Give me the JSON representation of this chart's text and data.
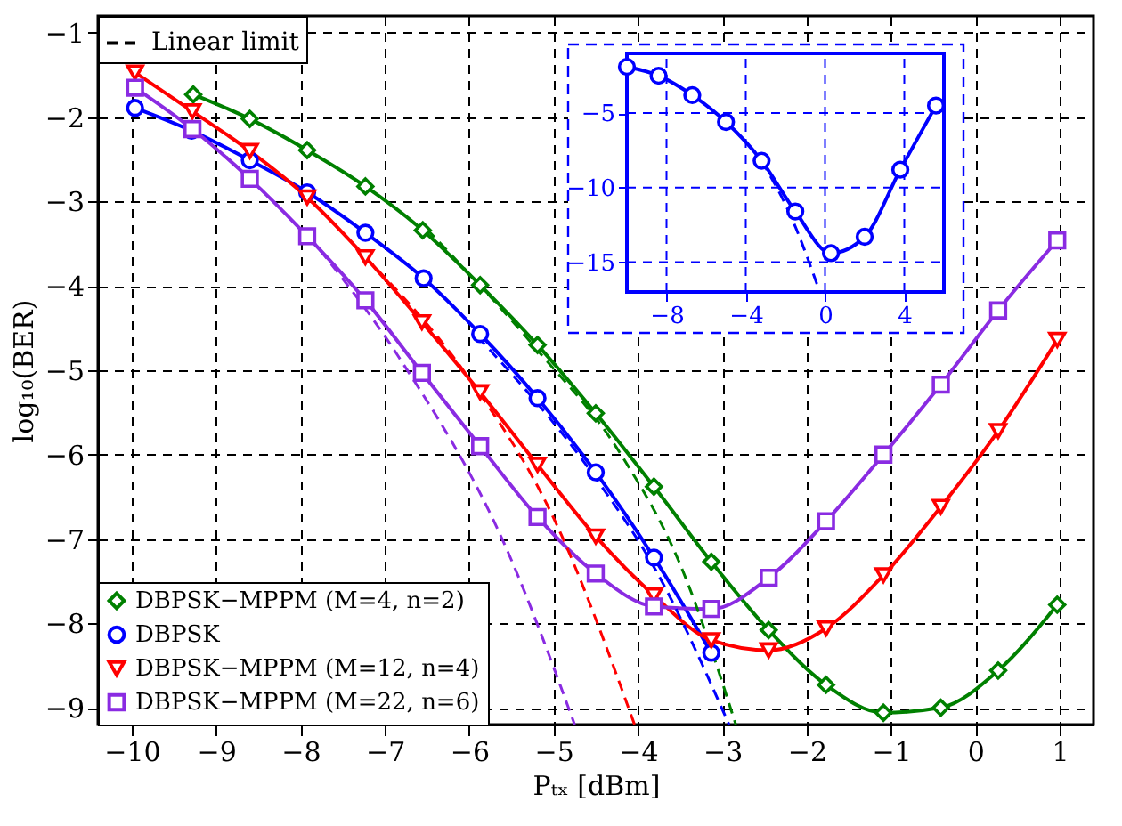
{
  "chart_data": [
    {
      "type": "line",
      "xlabel": "Pₜₓ [dBm]",
      "ylabel": "log₁₀(BER)",
      "xlim": [
        -10.4,
        1.4
      ],
      "ylim": [
        -9.2,
        -0.8
      ],
      "xticks": [
        -10,
        -9,
        -8,
        -7,
        -6,
        -5,
        -4,
        -3,
        -2,
        -1,
        0,
        1
      ],
      "yticks": [
        -9,
        -8,
        -7,
        -6,
        -5,
        -4,
        -3,
        -2,
        -1
      ],
      "grid": true,
      "legend": "bottom left",
      "annotations": [
        "Linear limit"
      ],
      "series": [
        {
          "name": "DBPSK−MPPM (M=4, n=2)",
          "color": "#008000",
          "marker": "diamond",
          "line_style": "solid",
          "x": [
            -9.27,
            -8.6,
            -7.92,
            -7.23,
            -6.55,
            -5.87,
            -5.19,
            -4.5,
            -3.81,
            -3.13,
            -2.45,
            -1.77,
            -1.09,
            -0.41,
            0.27,
            0.97
          ],
          "values": [
            -1.73,
            -2.02,
            -2.39,
            -2.82,
            -3.34,
            -3.99,
            -4.7,
            -5.51,
            -6.38,
            -7.27,
            -8.08,
            -8.73,
            -9.06,
            -9.0,
            -8.56,
            -7.78
          ]
        },
        {
          "name": "DBPSK",
          "color": "#0000ff",
          "marker": "circle",
          "line_style": "solid",
          "x": [
            -9.96,
            -9.29,
            -8.6,
            -7.92,
            -7.23,
            -6.54,
            -5.87,
            -5.19,
            -4.5,
            -3.81,
            -3.13
          ],
          "values": [
            -1.89,
            -2.16,
            -2.51,
            -2.89,
            -3.37,
            -3.91,
            -4.57,
            -5.33,
            -6.21,
            -7.22,
            -8.35
          ]
        },
        {
          "name": "DBPSK−MPPM (M=12, n=4)",
          "color": "#ff0000",
          "marker": "triangle",
          "line_style": "solid",
          "x": [
            -9.96,
            -9.28,
            -8.6,
            -7.92,
            -7.23,
            -6.56,
            -5.87,
            -5.19,
            -4.5,
            -3.81,
            -3.13,
            -2.45,
            -1.77,
            -1.09,
            -0.41,
            0.27,
            0.97
          ],
          "values": [
            -1.47,
            -1.93,
            -2.4,
            -2.95,
            -3.66,
            -4.43,
            -5.26,
            -6.12,
            -6.97,
            -7.67,
            -8.2,
            -8.32,
            -8.06,
            -7.43,
            -6.62,
            -5.72,
            -4.64
          ]
        },
        {
          "name": "DBPSK−MPPM (M=22, n=6)",
          "color": "#8a2be2",
          "marker": "square",
          "line_style": "solid",
          "x": [
            -9.96,
            -9.28,
            -8.6,
            -7.92,
            -7.23,
            -6.56,
            -5.87,
            -5.19,
            -4.5,
            -3.81,
            -3.13,
            -2.45,
            -1.77,
            -1.09,
            -0.41,
            0.27,
            0.97
          ],
          "values": [
            -1.65,
            -2.14,
            -2.73,
            -3.41,
            -4.17,
            -5.03,
            -5.9,
            -6.74,
            -7.41,
            -7.8,
            -7.83,
            -7.46,
            -6.79,
            -6.0,
            -5.17,
            -4.29,
            -3.46
          ]
        },
        {
          "color": "#008000",
          "marker": "none",
          "line_style": "dashed",
          "x": [
            -6.5,
            -5.2,
            -4.2,
            -3.5,
            -2.84
          ],
          "values": [
            -3.33,
            -4.75,
            -6.0,
            -7.3,
            -9.2
          ]
        },
        {
          "color": "#0000ff",
          "marker": "none",
          "line_style": "dashed",
          "x": [
            -5.9,
            -4.5,
            -3.8,
            -2.92
          ],
          "values": [
            -4.6,
            -6.28,
            -7.35,
            -9.2
          ]
        },
        {
          "color": "#ff0000",
          "marker": "none",
          "line_style": "dashed",
          "x": [
            -7.23,
            -6.0,
            -5.0,
            -4.04
          ],
          "values": [
            -3.66,
            -5.1,
            -6.75,
            -9.2
          ]
        },
        {
          "color": "#8a2be2",
          "marker": "none",
          "line_style": "dashed",
          "x": [
            -7.9,
            -6.83,
            -5.56,
            -4.75
          ],
          "values": [
            -3.41,
            -4.85,
            -7.11,
            -9.2
          ]
        }
      ]
    },
    {
      "type": "line",
      "xlim": [
        -10,
        6
      ],
      "ylim": [
        -17,
        -1
      ],
      "xticks": [
        -8,
        -4,
        0,
        4
      ],
      "yticks": [
        -15,
        -10,
        -5
      ],
      "grid": true,
      "series": [
        {
          "color": "#0000ff",
          "marker": "circle",
          "line_style": "solid",
          "x": [
            -10,
            -8.4,
            -6.7,
            -5.0,
            -3.2,
            -1.5,
            0.3,
            2.0,
            3.8,
            5.6
          ],
          "values": [
            -1.9,
            -2.5,
            -3.8,
            -5.6,
            -8.2,
            -11.6,
            -14.4,
            -13.3,
            -8.8,
            -4.5
          ]
        },
        {
          "color": "#0000ff",
          "marker": "none",
          "line_style": "dashed",
          "x": [
            -3.2,
            -1.6,
            -0.4
          ],
          "values": [
            -8.2,
            -12.3,
            -16.5
          ]
        }
      ]
    }
  ]
}
